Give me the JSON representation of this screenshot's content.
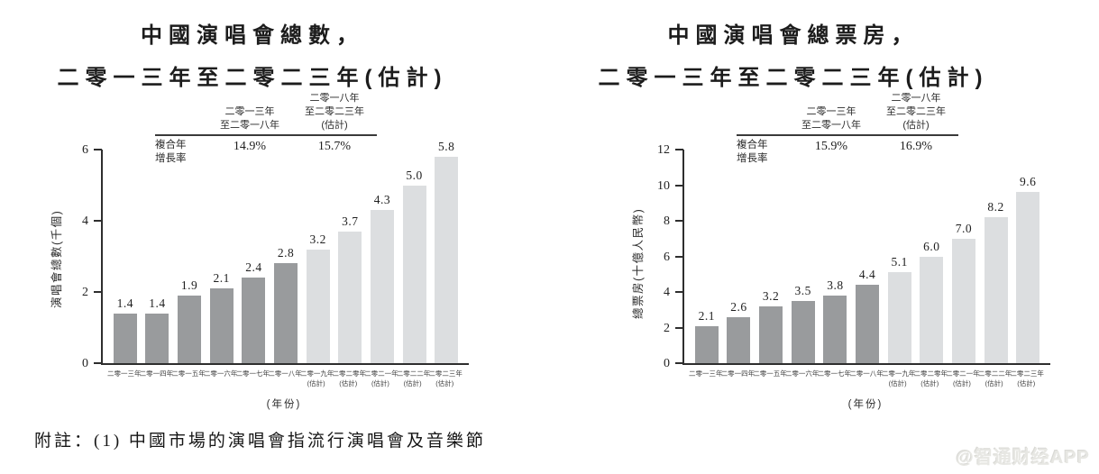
{
  "charts": [
    {
      "title_line1": "中國演唱會總數，",
      "title_line2": "二零一三年至二零二三年(估計)",
      "cagr": {
        "row_label_line1": "複合年",
        "row_label_line2": "增長率",
        "col1_header_line1": "二零一三年",
        "col1_header_line2": "至二零一八年",
        "col2_header_line1": "二零一八年",
        "col2_header_line2": "至二零二三年",
        "col2_header_line3": "(估計)",
        "col1_value": "14.9%",
        "col2_value": "15.7%"
      },
      "ylabel": "演唱會總數(千個)",
      "xlabel": "(年份)"
    },
    {
      "title_line1": "中國演唱會總票房，",
      "title_line2": "二零一三年至二零二三年(估計)",
      "cagr": {
        "row_label_line1": "複合年",
        "row_label_line2": "增長率",
        "col1_header_line1": "二零一三年",
        "col1_header_line2": "至二零一八年",
        "col2_header_line1": "二零一八年",
        "col2_header_line2": "至二零二三年",
        "col2_header_line3": "(估計)",
        "col1_value": "15.9%",
        "col2_value": "16.9%"
      },
      "ylabel": "總票房(十億人民幣)",
      "xlabel": "(年份)"
    }
  ],
  "chart_data": [
    {
      "type": "bar",
      "title": "中國演唱會總數，二零一三年至二零二三年(估計)",
      "categories": [
        "二零一三年",
        "二零一四年",
        "二零一五年",
        "二零一六年",
        "二零一七年",
        "二零一八年",
        "二零一九年",
        "二零二零年",
        "二零二一年",
        "二零二二年",
        "二零二三年"
      ],
      "estimate": [
        false,
        false,
        false,
        false,
        false,
        false,
        true,
        true,
        true,
        true,
        true
      ],
      "estimate_sublabel": "(估計)",
      "values": [
        1.4,
        1.4,
        1.9,
        2.1,
        2.4,
        2.8,
        3.2,
        3.7,
        4.3,
        5.0,
        5.8
      ],
      "ylabel": "演唱會總數(千個)",
      "xlabel": "(年份)",
      "ylim": [
        0,
        6
      ],
      "yticks": [
        0,
        2,
        4,
        6
      ],
      "cagr_2013_2018": "14.9%",
      "cagr_2018_2023_estimate": "15.7%",
      "legend": "none",
      "grid": false
    },
    {
      "type": "bar",
      "title": "中國演唱會總票房，二零一三年至二零二三年(估計)",
      "categories": [
        "二零一三年",
        "二零一四年",
        "二零一五年",
        "二零一六年",
        "二零一七年",
        "二零一八年",
        "二零一九年",
        "二零二零年",
        "二零二一年",
        "二零二二年",
        "二零二三年"
      ],
      "estimate": [
        false,
        false,
        false,
        false,
        false,
        false,
        true,
        true,
        true,
        true,
        true
      ],
      "estimate_sublabel": "(估計)",
      "values": [
        2.1,
        2.6,
        3.2,
        3.5,
        3.8,
        4.4,
        5.1,
        6.0,
        7.0,
        8.2,
        9.6
      ],
      "ylabel": "總票房(十億人民幣)",
      "xlabel": "(年份)",
      "ylim": [
        0,
        12
      ],
      "yticks": [
        0,
        2,
        4,
        6,
        8,
        10,
        12
      ],
      "cagr_2013_2018": "15.9%",
      "cagr_2018_2023_estimate": "16.9%",
      "legend": "none",
      "grid": false
    }
  ],
  "footnote": "附註：(1) 中國市場的演唱會指流行演唱會及音樂節",
  "watermark": "@智通财经APP",
  "colors": {
    "bar_historical": "#999b9d",
    "bar_estimate": "#dcdee0",
    "axis": "#2e2e2e",
    "text": "#1c1c1c",
    "watermark": "#e7e7e3"
  }
}
